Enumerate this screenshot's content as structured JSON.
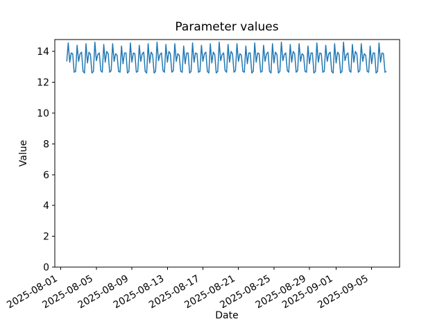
{
  "figure": {
    "background_color": "#ffffff",
    "frame_color": "#000000"
  },
  "chart_data": {
    "type": "line",
    "title": "Parameter values",
    "xlabel": "Date",
    "ylabel": "Value",
    "legend": null,
    "grid": false,
    "line_color": "#1f77b4",
    "line_width": 1.5,
    "x_tick_labels": [
      "2025-08-01",
      "2025-08-05",
      "2025-08-09",
      "2025-08-13",
      "2025-08-17",
      "2025-08-21",
      "2025-08-25",
      "2025-08-29",
      "2025-09-01",
      "2025-09-05"
    ],
    "x_tick_positions_days": [
      0,
      4,
      8,
      12,
      16,
      20,
      24,
      28,
      31,
      35
    ],
    "x_tick_rotation_deg": -30,
    "xlim_days": [
      -0.68,
      38.15
    ],
    "y_ticks": [
      0,
      2,
      4,
      6,
      8,
      10,
      12,
      14
    ],
    "ylim": [
      0,
      14.77
    ],
    "x_start_label": "2025-08-01",
    "x_start_days": 0.6667,
    "sample_interval_hours": 4,
    "values": [
      13.35,
      14.55,
      13.3,
      13.9,
      13.85,
      12.65,
      12.7,
      14.4,
      13.35,
      13.85,
      13.95,
      12.7,
      12.6,
      14.5,
      13.25,
      13.95,
      13.8,
      12.6,
      12.7,
      14.6,
      13.4,
      13.8,
      13.9,
      12.75,
      12.65,
      14.45,
      13.3,
      14.0,
      13.85,
      12.65,
      12.75,
      14.5,
      13.35,
      13.85,
      13.75,
      12.7,
      12.65,
      14.35,
      13.2,
      13.9,
      13.9,
      12.6,
      12.7,
      14.55,
      13.3,
      13.9,
      13.85,
      12.65,
      12.7,
      14.4,
      13.35,
      13.85,
      13.95,
      12.7,
      12.6,
      14.5,
      13.25,
      13.95,
      13.8,
      12.6,
      12.7,
      14.6,
      13.4,
      13.8,
      13.9,
      12.75,
      12.65,
      14.45,
      13.3,
      14.0,
      13.85,
      12.65,
      12.75,
      14.5,
      13.35,
      13.85,
      13.75,
      12.7,
      12.65,
      14.35,
      13.2,
      13.9,
      13.9,
      12.6,
      12.7,
      14.55,
      13.3,
      13.9,
      13.85,
      12.65,
      12.7,
      14.4,
      13.35,
      13.85,
      13.95,
      12.7,
      12.6,
      14.5,
      13.25,
      13.95,
      13.8,
      12.6,
      12.7,
      14.6,
      13.4,
      13.8,
      13.9,
      12.75,
      12.65,
      14.45,
      13.3,
      14.0,
      13.85,
      12.65,
      12.75,
      14.5,
      13.35,
      13.85,
      13.75,
      12.7,
      12.65,
      14.35,
      13.2,
      13.9,
      13.9,
      12.6,
      12.7,
      14.55,
      13.3,
      13.9,
      13.85,
      12.65,
      12.7,
      14.4,
      13.35,
      13.85,
      13.95,
      12.7,
      12.6,
      14.5,
      13.25,
      13.95,
      13.8,
      12.6,
      12.7,
      14.6,
      13.4,
      13.8,
      13.9,
      12.75,
      12.65,
      14.45,
      13.3,
      14.0,
      13.85,
      12.65,
      12.75,
      14.5,
      13.35,
      13.85,
      13.75,
      12.7,
      12.65,
      14.35,
      13.2,
      13.9,
      13.9,
      12.6,
      12.7,
      14.55,
      13.3,
      13.9,
      13.85,
      12.65,
      12.7,
      14.4,
      13.35,
      13.85,
      13.95,
      12.7,
      12.6,
      14.5,
      13.25,
      13.95,
      13.8,
      12.6,
      12.7,
      14.6,
      13.4,
      13.8,
      13.9,
      12.75,
      12.65,
      14.45,
      13.3,
      14.0,
      13.85,
      12.65,
      12.75,
      14.5,
      13.35,
      13.85,
      13.75,
      12.7,
      12.65,
      14.35,
      13.2,
      13.9,
      13.9,
      12.6,
      12.7,
      14.55,
      13.3,
      13.9,
      13.85,
      12.65,
      12.7
    ]
  }
}
